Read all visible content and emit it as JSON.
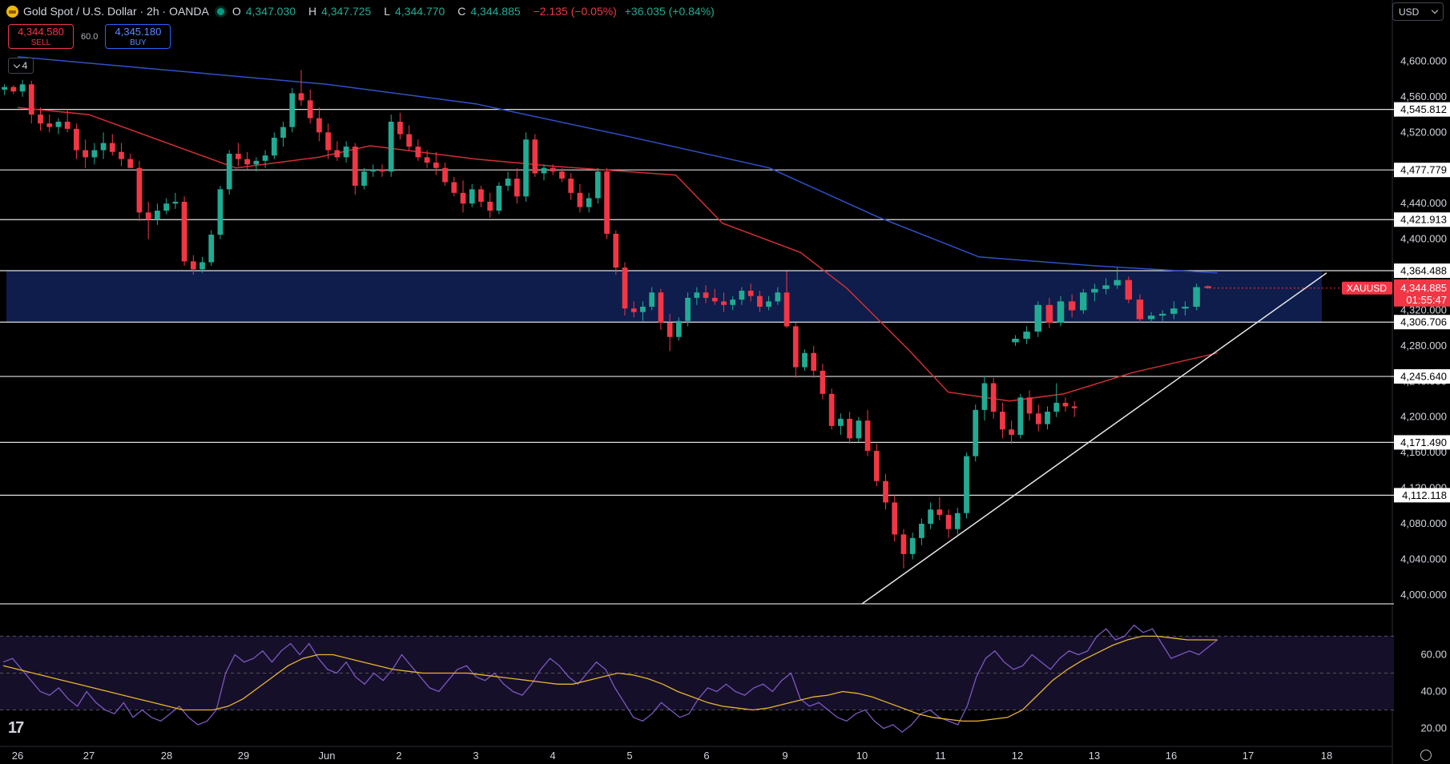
{
  "header": {
    "title": "Gold Spot / U.S. Dollar · 2h · OANDA",
    "open_label": "O",
    "open": "4,347.030",
    "high_label": "H",
    "high": "4,347.725",
    "low_label": "L",
    "low": "4,344.770",
    "close_label": "C",
    "close": "4,344.885",
    "change": "−2.135 (−0.05%)",
    "change2": "+36.035 (+0.84%)"
  },
  "trade": {
    "sell_price": "4,344.580",
    "sell_label": "SELL",
    "spread": "60.0",
    "buy_price": "4,345.180",
    "buy_label": "BUY"
  },
  "indicators_count": "4",
  "currency": "USD",
  "colors": {
    "up": "#22ab94",
    "down": "#f23645",
    "ma_blue": "#2f52c8",
    "ma_red": "#d12f34",
    "zone": "#0f1f4f",
    "rsi": "#7e57c2",
    "rsi_ma": "#e8b52c",
    "level_line": "#e0e0e0"
  },
  "chart_data": [
    {
      "type": "candlestick",
      "symbol": "XAUUSD",
      "interval": "2h",
      "x_tick_labels": [
        "26",
        "27",
        "28",
        "29",
        "Jun",
        "2",
        "3",
        "4",
        "5",
        "6",
        "9",
        "10",
        "11",
        "12",
        "13",
        "16",
        "17",
        "18"
      ],
      "y_tick_labels": [
        "4,600.000",
        "4,560.000",
        "4,520.000",
        "4,480.000",
        "4,440.000",
        "4,400.000",
        "4,360.000",
        "4,320.000",
        "4,280.000",
        "4,240.000",
        "4,200.000",
        "4,160.000",
        "4,120.000",
        "4,080.000",
        "4,040.000",
        "4,000.000"
      ],
      "ylim": [
        3990,
        4640
      ],
      "horizontal_levels": [
        "4,545.812",
        "4,477.779",
        "4,421.913",
        "4,364.488",
        "4,306.706",
        "4,245.640",
        "4,171.490",
        "4,112.118"
      ],
      "zone": [
        4306.706,
        4364.488
      ],
      "current_price_label": "XAUUSD",
      "current_price": "4,344.885",
      "countdown": "01:55:47",
      "trendline": [
        {
          "x": 11,
          "y": 3990
        },
        {
          "x": 17.4,
          "y": 4362
        }
      ],
      "x_numeric": "trading days from May 26 (26=0 … Jun 13=14, 16=15, 17=16, 18=17)",
      "ma_slow": [
        [
          0,
          4605
        ],
        [
          2,
          4590
        ],
        [
          4,
          4574
        ],
        [
          6,
          4552
        ],
        [
          8,
          4515
        ],
        [
          9.8,
          4480
        ],
        [
          11.2,
          4425
        ],
        [
          12.5,
          4380
        ],
        [
          14,
          4370
        ],
        [
          15.6,
          4362
        ]
      ],
      "ma_fast": [
        [
          0,
          4548
        ],
        [
          1,
          4540
        ],
        [
          2.9,
          4480
        ],
        [
          3.9,
          4492
        ],
        [
          4.6,
          4505
        ],
        [
          6,
          4490
        ],
        [
          7,
          4482
        ],
        [
          8.6,
          4472
        ],
        [
          9.2,
          4418
        ],
        [
          10.2,
          4385
        ],
        [
          10.8,
          4345
        ],
        [
          11.6,
          4275
        ],
        [
          12.1,
          4228
        ],
        [
          12.9,
          4218
        ],
        [
          13.6,
          4226
        ],
        [
          14.5,
          4250
        ],
        [
          15.6,
          4272
        ]
      ],
      "candles": [
        [
          4568,
          4574,
          4562,
          4571
        ],
        [
          4571,
          4573,
          4563,
          4566
        ],
        [
          4566,
          4579,
          4560,
          4574
        ],
        [
          4574,
          4578,
          4530,
          4540
        ],
        [
          4540,
          4548,
          4522,
          4530
        ],
        [
          4530,
          4540,
          4520,
          4526
        ],
        [
          4526,
          4536,
          4518,
          4532
        ],
        [
          4532,
          4546,
          4520,
          4524
        ],
        [
          4524,
          4530,
          4490,
          4500
        ],
        [
          4500,
          4512,
          4480,
          4492
        ],
        [
          4492,
          4508,
          4484,
          4500
        ],
        [
          4500,
          4520,
          4490,
          4508
        ],
        [
          4508,
          4518,
          4494,
          4498
        ],
        [
          4498,
          4508,
          4482,
          4490
        ],
        [
          4490,
          4496,
          4480,
          4480
        ],
        [
          4480,
          4488,
          4420,
          4430
        ],
        [
          4430,
          4442,
          4400,
          4422
        ],
        [
          4422,
          4440,
          4416,
          4432
        ],
        [
          4432,
          4446,
          4428,
          4440
        ],
        [
          4440,
          4452,
          4434,
          4442
        ],
        [
          4442,
          4448,
          4370,
          4375
        ],
        [
          4375,
          4382,
          4360,
          4366
        ],
        [
          4366,
          4380,
          4362,
          4374
        ],
        [
          4374,
          4410,
          4370,
          4405
        ],
        [
          4405,
          4460,
          4400,
          4456
        ],
        [
          4456,
          4500,
          4450,
          4496
        ],
        [
          4496,
          4508,
          4482,
          4490
        ],
        [
          4490,
          4498,
          4478,
          4484
        ],
        [
          4484,
          4492,
          4476,
          4488
        ],
        [
          4488,
          4500,
          4480,
          4494
        ],
        [
          4494,
          4520,
          4490,
          4514
        ],
        [
          4514,
          4532,
          4504,
          4526
        ],
        [
          4526,
          4570,
          4520,
          4564
        ],
        [
          4564,
          4590,
          4550,
          4556
        ],
        [
          4556,
          4568,
          4530,
          4536
        ],
        [
          4536,
          4548,
          4510,
          4520
        ],
        [
          4520,
          4530,
          4490,
          4500
        ],
        [
          4500,
          4510,
          4488,
          4492
        ],
        [
          4492,
          4510,
          4486,
          4504
        ],
        [
          4504,
          4508,
          4450,
          4460
        ],
        [
          4460,
          4480,
          4456,
          4476
        ],
        [
          4476,
          4484,
          4470,
          4478
        ],
        [
          4478,
          4484,
          4470,
          4476
        ],
        [
          4476,
          4540,
          4470,
          4532
        ],
        [
          4532,
          4542,
          4512,
          4518
        ],
        [
          4518,
          4528,
          4500,
          4504
        ],
        [
          4504,
          4512,
          4488,
          4492
        ],
        [
          4492,
          4500,
          4480,
          4486
        ],
        [
          4486,
          4498,
          4472,
          4480
        ],
        [
          4480,
          4486,
          4460,
          4464
        ],
        [
          4464,
          4470,
          4448,
          4452
        ],
        [
          4452,
          4466,
          4430,
          4440
        ],
        [
          4440,
          4462,
          4436,
          4456
        ],
        [
          4456,
          4460,
          4436,
          4442
        ],
        [
          4442,
          4452,
          4424,
          4432
        ],
        [
          4432,
          4464,
          4428,
          4460
        ],
        [
          4460,
          4476,
          4454,
          4468
        ],
        [
          4468,
          4480,
          4440,
          4448
        ],
        [
          4448,
          4520,
          4442,
          4512
        ],
        [
          4512,
          4518,
          4470,
          4474
        ],
        [
          4474,
          4484,
          4466,
          4480
        ],
        [
          4480,
          4484,
          4472,
          4476
        ],
        [
          4476,
          4480,
          4464,
          4468
        ],
        [
          4468,
          4474,
          4444,
          4452
        ],
        [
          4452,
          4462,
          4430,
          4436
        ],
        [
          4436,
          4452,
          4430,
          4446
        ],
        [
          4446,
          4480,
          4440,
          4476
        ],
        [
          4476,
          4480,
          4400,
          4406
        ],
        [
          4406,
          4410,
          4360,
          4368
        ],
        [
          4368,
          4374,
          4314,
          4322
        ],
        [
          4322,
          4330,
          4312,
          4318
        ],
        [
          4318,
          4330,
          4308,
          4324
        ],
        [
          4324,
          4346,
          4320,
          4340
        ],
        [
          4340,
          4344,
          4298,
          4306
        ],
        [
          4306,
          4316,
          4274,
          4290
        ],
        [
          4290,
          4312,
          4286,
          4308
        ],
        [
          4308,
          4340,
          4302,
          4334
        ],
        [
          4334,
          4346,
          4326,
          4340
        ],
        [
          4340,
          4348,
          4328,
          4334
        ],
        [
          4334,
          4344,
          4326,
          4330
        ],
        [
          4330,
          4340,
          4318,
          4326
        ],
        [
          4326,
          4336,
          4320,
          4332
        ],
        [
          4332,
          4346,
          4326,
          4342
        ],
        [
          4342,
          4350,
          4330,
          4336
        ],
        [
          4336,
          4342,
          4318,
          4324
        ],
        [
          4324,
          4336,
          4320,
          4330
        ],
        [
          4330,
          4346,
          4326,
          4340
        ],
        [
          4340,
          4364,
          4300,
          4302
        ],
        [
          4302,
          4306,
          4244,
          4256
        ],
        [
          4256,
          4276,
          4252,
          4272
        ],
        [
          4272,
          4280,
          4244,
          4252
        ],
        [
          4252,
          4260,
          4220,
          4226
        ],
        [
          4226,
          4232,
          4186,
          4190
        ],
        [
          4190,
          4204,
          4180,
          4198
        ],
        [
          4198,
          4206,
          4170,
          4176
        ],
        [
          4176,
          4200,
          4172,
          4196
        ],
        [
          4196,
          4208,
          4156,
          4162
        ],
        [
          4162,
          4170,
          4122,
          4128
        ],
        [
          4128,
          4136,
          4096,
          4104
        ],
        [
          4104,
          4112,
          4060,
          4068
        ],
        [
          4068,
          4074,
          4030,
          4046
        ],
        [
          4046,
          4070,
          4040,
          4064
        ],
        [
          4064,
          4086,
          4056,
          4080
        ],
        [
          4080,
          4104,
          4074,
          4096
        ],
        [
          4096,
          4110,
          4084,
          4090
        ],
        [
          4090,
          4096,
          4064,
          4074
        ],
        [
          4074,
          4098,
          4068,
          4092
        ],
        [
          4092,
          4160,
          4086,
          4156
        ],
        [
          4156,
          4214,
          4150,
          4208
        ],
        [
          4208,
          4246,
          4196,
          4238
        ],
        [
          4238,
          4244,
          4198,
          4206
        ],
        [
          4206,
          4216,
          4176,
          4186
        ],
        [
          4186,
          4196,
          4170,
          4180
        ],
        [
          4180,
          4226,
          4176,
          4222
        ],
        [
          4222,
          4230,
          4196,
          4204
        ],
        [
          4204,
          4214,
          4184,
          4192
        ],
        [
          4192,
          4212,
          4186,
          4206
        ],
        [
          4206,
          4238,
          4200,
          4216
        ],
        [
          4216,
          4222,
          4206,
          4212
        ],
        [
          4212,
          4218,
          4200,
          4210
        ]
      ],
      "candles_after_gap": [
        [
          4284,
          4292,
          4280,
          4288
        ],
        [
          4288,
          4302,
          4282,
          4296
        ],
        [
          4296,
          4330,
          4290,
          4326
        ],
        [
          4326,
          4334,
          4300,
          4306
        ],
        [
          4306,
          4336,
          4302,
          4330
        ],
        [
          4330,
          4338,
          4312,
          4320
        ],
        [
          4320,
          4344,
          4316,
          4340
        ],
        [
          4340,
          4350,
          4330,
          4344
        ],
        [
          4344,
          4356,
          4338,
          4348
        ],
        [
          4348,
          4368,
          4344,
          4354
        ],
        [
          4354,
          4358,
          4328,
          4332
        ],
        [
          4332,
          4338,
          4306,
          4310
        ],
        [
          4310,
          4318,
          4306,
          4314
        ],
        [
          4314,
          4320,
          4308,
          4316
        ],
        [
          4316,
          4330,
          4310,
          4322
        ],
        [
          4322,
          4330,
          4314,
          4324
        ],
        [
          4324,
          4350,
          4320,
          4346
        ],
        [
          4347,
          4348,
          4344,
          4345
        ]
      ]
    },
    {
      "type": "line",
      "title": "RSI",
      "y_tick_labels": [
        "60.00",
        "40.00",
        "20.00"
      ],
      "ylim": [
        12,
        78
      ],
      "bands": [
        30,
        50,
        70
      ],
      "rsi": [
        56,
        58,
        52,
        46,
        40,
        38,
        42,
        36,
        32,
        40,
        34,
        30,
        28,
        34,
        26,
        30,
        26,
        24,
        28,
        32,
        26,
        22,
        24,
        30,
        50,
        60,
        56,
        58,
        62,
        56,
        62,
        66,
        60,
        66,
        58,
        52,
        50,
        56,
        48,
        44,
        50,
        46,
        52,
        60,
        54,
        48,
        42,
        40,
        46,
        52,
        54,
        48,
        46,
        50,
        44,
        40,
        38,
        44,
        52,
        58,
        54,
        48,
        44,
        50,
        56,
        52,
        42,
        34,
        26,
        24,
        28,
        34,
        30,
        26,
        28,
        36,
        42,
        40,
        44,
        40,
        38,
        42,
        44,
        40,
        46,
        50,
        36,
        32,
        34,
        30,
        26,
        24,
        28,
        30,
        24,
        20,
        22,
        18,
        22,
        28,
        30,
        26,
        24,
        22,
        32,
        48,
        58,
        62,
        56,
        52,
        54,
        60,
        56,
        52,
        58,
        62,
        60,
        62,
        70,
        74,
        68,
        70,
        76,
        72,
        74,
        66,
        58,
        60,
        62,
        60,
        64,
        68
      ],
      "rsi_ma": [
        54,
        52,
        50,
        48,
        46,
        44,
        42,
        40,
        38,
        36,
        34,
        32,
        30,
        30,
        30,
        32,
        36,
        42,
        48,
        54,
        58,
        60,
        60,
        58,
        56,
        54,
        52,
        51,
        50,
        50,
        50,
        50,
        49,
        48,
        47,
        46,
        45,
        44,
        44,
        46,
        48,
        50,
        49,
        47,
        44,
        40,
        37,
        34,
        32,
        31,
        30,
        31,
        33,
        35,
        37,
        38,
        40,
        39,
        37,
        34,
        31,
        28,
        26,
        25,
        24,
        24,
        25,
        26,
        30,
        38,
        46,
        52,
        57,
        61,
        65,
        68,
        70,
        70,
        69,
        68,
        68,
        68
      ]
    }
  ]
}
